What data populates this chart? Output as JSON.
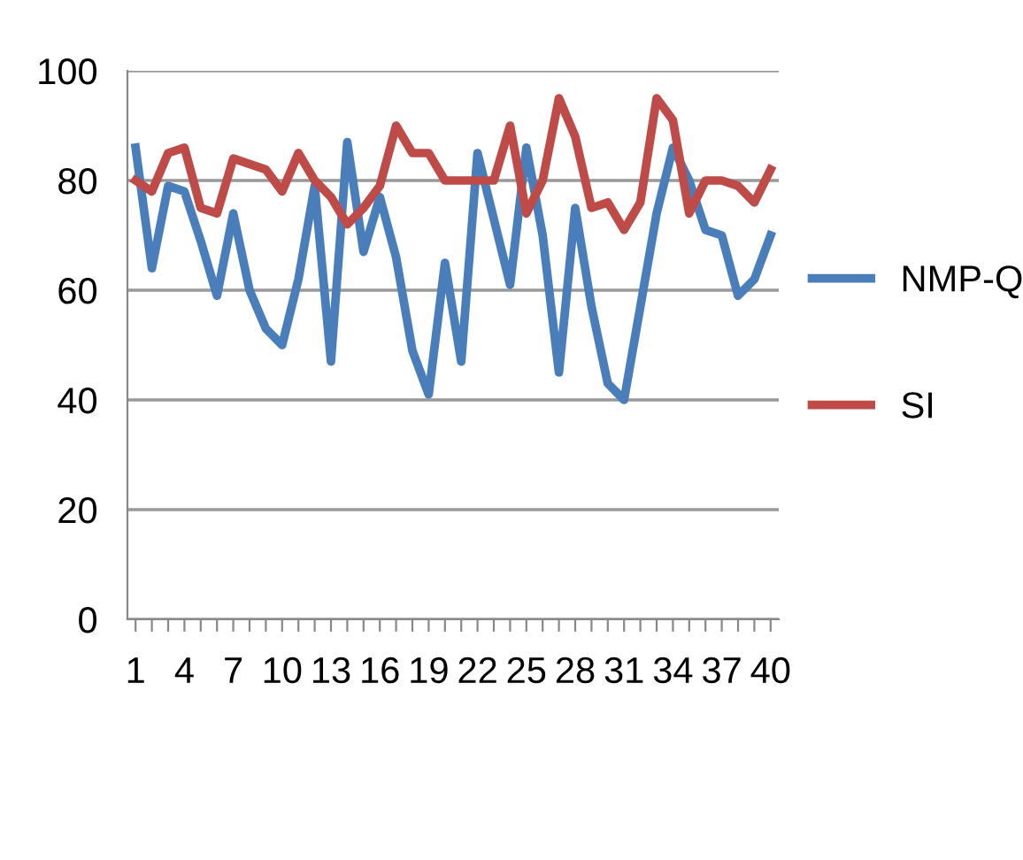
{
  "chart_data": {
    "type": "line",
    "categories": [
      "1",
      null,
      null,
      "4",
      null,
      null,
      "7",
      null,
      null,
      "10",
      null,
      null,
      "13",
      null,
      null,
      "16",
      null,
      null,
      "19",
      null,
      null,
      "22",
      null,
      null,
      "25",
      null,
      null,
      "28",
      null,
      null,
      "31",
      null,
      null,
      "34",
      null,
      null,
      "37",
      null,
      null,
      "40"
    ],
    "series": [
      {
        "name": "NMP-Q",
        "color": "#4a7ebb",
        "values": [
          86,
          64,
          79,
          78,
          69,
          59,
          74,
          60,
          53,
          50,
          62,
          79,
          47,
          87,
          67,
          77,
          66,
          49,
          41,
          65,
          47,
          85,
          73,
          61,
          86,
          70,
          45,
          75,
          57,
          43,
          40,
          57,
          74,
          86,
          80,
          71,
          70,
          59,
          62,
          70
        ]
      },
      {
        "name": "SI",
        "color": "#be4b48",
        "values": [
          80,
          78,
          85,
          86,
          75,
          74,
          84,
          83,
          82,
          78,
          85,
          80,
          77,
          72,
          75,
          79,
          90,
          85,
          85,
          80,
          80,
          80,
          80,
          90,
          74,
          80,
          95,
          88,
          75,
          76,
          71,
          76,
          95,
          91,
          74,
          80,
          80,
          79,
          76,
          82
        ]
      }
    ],
    "ylim": [
      0,
      100
    ],
    "yticks": [
      0,
      20,
      40,
      60,
      80,
      100
    ],
    "grid": "y",
    "legend": "right",
    "marker": "none",
    "line_style": "solid"
  }
}
